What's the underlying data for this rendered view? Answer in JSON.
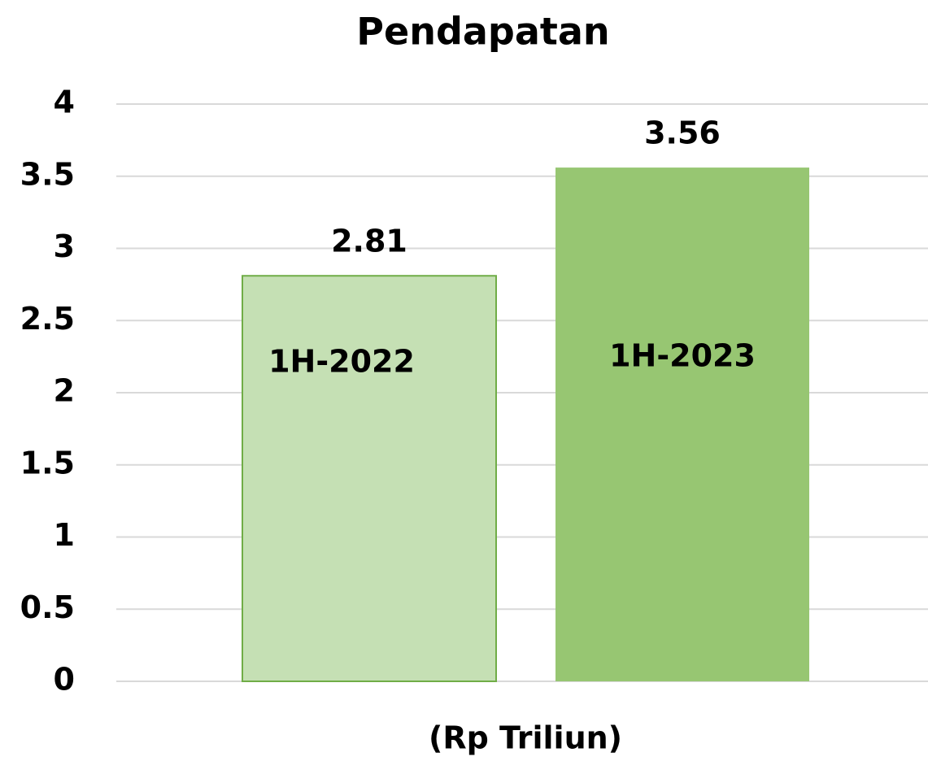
{
  "chart_data": {
    "type": "bar",
    "title": "Pendapatan",
    "x_label": "(Rp Triliun)",
    "categories": [
      "1H-2022",
      "1H-2023"
    ],
    "values": [
      2.81,
      3.56
    ],
    "colors": [
      "#c5e0b4",
      "#97c672"
    ],
    "edge_color": "#70ad47",
    "ylim": [
      0,
      4
    ],
    "yticks": [
      0,
      0.5,
      1,
      1.5,
      2,
      2.5,
      3,
      3.5,
      4
    ],
    "grid": true
  }
}
